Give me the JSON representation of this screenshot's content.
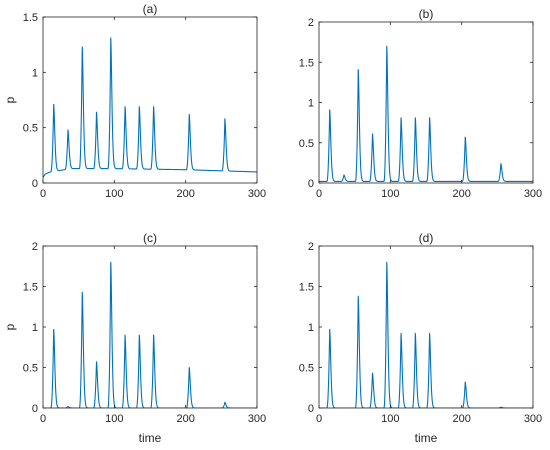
{
  "chart_data": [
    {
      "type": "line",
      "title": "(a)",
      "xlabel": "",
      "ylabel": "p",
      "xlim": [
        0,
        300
      ],
      "ylim": [
        0,
        1.5
      ],
      "xticks": [
        0,
        100,
        200,
        300
      ],
      "yticks": [
        0,
        0.5,
        1,
        1.5
      ],
      "ytick_labels": [
        "0",
        "0.5",
        "1",
        "1.5"
      ],
      "baseline": {
        "x": [
          0,
          3,
          10,
          40,
          100,
          200,
          300
        ],
        "y": [
          0.05,
          0.08,
          0.1,
          0.13,
          0.13,
          0.12,
          0.1
        ]
      },
      "peaks": {
        "x": [
          15,
          35,
          55,
          75,
          95,
          115,
          135,
          155,
          205,
          255
        ],
        "y": [
          0.71,
          0.48,
          1.23,
          0.64,
          1.31,
          0.69,
          0.69,
          0.69,
          0.62,
          0.58
        ]
      },
      "grid": false
    },
    {
      "type": "line",
      "title": "(b)",
      "xlabel": "",
      "ylabel": "",
      "xlim": [
        0,
        300
      ],
      "ylim": [
        0,
        2
      ],
      "xticks": [
        0,
        100,
        200,
        300
      ],
      "yticks": [
        0,
        0.5,
        1,
        1.5,
        2
      ],
      "ytick_labels": [
        "0",
        "0.5",
        "1",
        "1.5",
        "2"
      ],
      "baseline": {
        "x": [
          0,
          300
        ],
        "y": [
          0.02,
          0.02
        ]
      },
      "peaks": {
        "x": [
          15,
          35,
          55,
          75,
          95,
          115,
          135,
          155,
          205,
          255
        ],
        "y": [
          0.91,
          0.1,
          1.41,
          0.61,
          1.7,
          0.81,
          0.81,
          0.81,
          0.57,
          0.24
        ]
      },
      "grid": false
    },
    {
      "type": "line",
      "title": "(c)",
      "xlabel": "time",
      "ylabel": "p",
      "xlim": [
        0,
        300
      ],
      "ylim": [
        0,
        2
      ],
      "xticks": [
        0,
        100,
        200,
        300
      ],
      "yticks": [
        0,
        0.5,
        1,
        1.5,
        2
      ],
      "ytick_labels": [
        "0",
        "0.5",
        "1",
        "1.5",
        "2"
      ],
      "baseline": {
        "x": [
          0,
          300
        ],
        "y": [
          0.0,
          0.0
        ]
      },
      "peaks": {
        "x": [
          15,
          35,
          55,
          75,
          95,
          115,
          135,
          155,
          205,
          255
        ],
        "y": [
          0.97,
          0.02,
          1.43,
          0.57,
          1.8,
          0.9,
          0.9,
          0.9,
          0.5,
          0.07
        ]
      },
      "grid": false
    },
    {
      "type": "line",
      "title": "(d)",
      "xlabel": "time",
      "ylabel": "",
      "xlim": [
        0,
        300
      ],
      "ylim": [
        0,
        2
      ],
      "xticks": [
        0,
        100,
        200,
        300
      ],
      "yticks": [
        0,
        0.5,
        1,
        1.5,
        2
      ],
      "ytick_labels": [
        "0",
        "0.5",
        "1",
        "1.5",
        "2"
      ],
      "baseline": {
        "x": [
          0,
          300
        ],
        "y": [
          0.0,
          0.0
        ]
      },
      "peaks": {
        "x": [
          15,
          35,
          55,
          75,
          95,
          115,
          135,
          155,
          205,
          255
        ],
        "y": [
          0.97,
          0.0,
          1.38,
          0.43,
          1.8,
          0.92,
          0.92,
          0.92,
          0.32,
          0.01
        ]
      },
      "grid": false
    }
  ],
  "colors": {
    "trace": "#0072BD",
    "axes": "#262626"
  }
}
